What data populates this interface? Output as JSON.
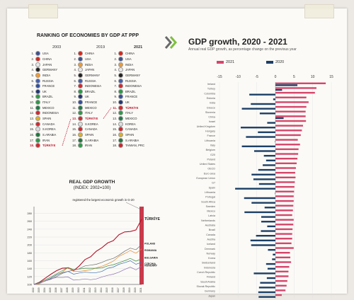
{
  "ranking": {
    "title": "RANKING OF ECONOMIES BY GDP AT PPP",
    "years": [
      "2003",
      "2019",
      "2021"
    ],
    "columns": [
      [
        "USA",
        "CHINA",
        "JAPAN",
        "GERMANY",
        "INDIA",
        "RUSSIA",
        "FRANCE",
        "UK",
        "BRAZIL",
        "ITALY",
        "MEXICO",
        "INDONESIA",
        "SPAIN",
        "CANADA",
        "S.KOREA",
        "S.ARABIA",
        "IRAN",
        "TÜRKİYE"
      ],
      [
        "CHINA",
        "USA",
        "INDIA",
        "JAPAN",
        "GERMANY",
        "RUSSIA",
        "INDONESIA",
        "BRAZIL",
        "UK",
        "FRANCE",
        "MEXICO",
        "ITALY",
        "TÜRKİYE",
        "S.KOREA",
        "CANADA",
        "SPAIN",
        "S.ARABIA",
        "IRAN"
      ],
      [
        "CHINA",
        "USA",
        "INDIA",
        "JAPAN",
        "GERMANY",
        "RUSSIA",
        "INDONESIA",
        "BRAZIL",
        "FRANCE",
        "UK",
        "TÜRKİYE",
        "ITALY",
        "MEXICO",
        "KOREA",
        "CANADA",
        "SPAIN",
        "S.ARABIA",
        "TAIWAN, PRC"
      ]
    ],
    "flag_colors": {
      "USA": "#3c4f8f",
      "CHINA": "#d8261c",
      "JAPAN": "#e8e8e8",
      "GERMANY": "#222222",
      "INDIA": "#f39a2c",
      "RUSSIA": "#3f5fb0",
      "FRANCE": "#2f4fa0",
      "UK": "#1f3578",
      "BRAZIL": "#2a9a45",
      "ITALY": "#2a9a45",
      "MEXICO": "#1d7a45",
      "INDONESIA": "#d6262c",
      "SPAIN": "#e0b020",
      "CANADA": "#d6262c",
      "S.KOREA": "#dddddd",
      "KOREA": "#dddddd",
      "S.ARABIA": "#1b7a3a",
      "IRAN": "#2a9a45",
      "TÜRKİYE": "#d6262c",
      "TAIWAN, PRC": "#c9262c"
    },
    "highlight": "TÜRKİYE"
  },
  "real_gdp": {
    "title": "REAL GDP GROWTH",
    "subtitle": "(INDEX: 2002=100)",
    "annotation": "registered the largest economic growth in G-20",
    "brand": "TÜRKİYE",
    "right_labels": [
      "POLAND",
      "ROMANIA",
      "BULGARIA",
      "CZECHIA",
      "HUNGARY"
    ]
  },
  "growth": {
    "title": "GDP growth, 2020 - 2021",
    "subtitle": "Annual real GDP growth, as percentage change on the previous year"
  },
  "chart_data": [
    {
      "type": "line",
      "title": "REAL GDP GROWTH",
      "subtitle": "(INDEX: 2002=100)",
      "x": [
        2002,
        2003,
        2004,
        2005,
        2006,
        2007,
        2008,
        2009,
        2010,
        2011,
        2012,
        2013,
        2014,
        2015,
        2016,
        2017,
        2018,
        2019,
        2020,
        2021
      ],
      "ylim": [
        100,
        290
      ],
      "yticks": [
        100,
        120,
        140,
        160,
        180,
        200,
        220,
        240,
        260,
        280
      ],
      "series": [
        {
          "name": "TÜRKİYE",
          "color": "#b5162b",
          "values": [
            100,
            106,
            116,
            126,
            135,
            141,
            142,
            135,
            147,
            163,
            170,
            184,
            193,
            205,
            211,
            226,
            233,
            234,
            238,
            265
          ]
        },
        {
          "name": "POLAND",
          "color": "#6b6b6b",
          "values": [
            100,
            104,
            109,
            113,
            120,
            128,
            133,
            136,
            140,
            147,
            149,
            151,
            156,
            162,
            166,
            174,
            184,
            192,
            188,
            201
          ]
        },
        {
          "name": "ROMANIA",
          "color": "#e08a2a",
          "values": [
            100,
            102,
            110,
            115,
            124,
            131,
            143,
            133,
            133,
            135,
            137,
            142,
            146,
            152,
            159,
            171,
            178,
            186,
            179,
            190
          ]
        },
        {
          "name": "BULGARIA",
          "color": "#3a8a3a",
          "values": [
            100,
            105,
            112,
            119,
            127,
            135,
            143,
            138,
            139,
            141,
            141,
            141,
            142,
            147,
            150,
            155,
            160,
            166,
            159,
            165
          ]
        },
        {
          "name": "CZECHIA",
          "color": "#3a6fb0",
          "values": [
            100,
            104,
            109,
            116,
            124,
            130,
            133,
            126,
            129,
            131,
            130,
            130,
            133,
            141,
            144,
            151,
            155,
            160,
            151,
            156
          ]
        },
        {
          "name": "HUNGARY",
          "color": "#8a6fb5",
          "values": [
            100,
            104,
            109,
            114,
            118,
            118,
            119,
            111,
            112,
            114,
            112,
            114,
            119,
            123,
            126,
            131,
            138,
            144,
            137,
            146
          ]
        }
      ]
    },
    {
      "type": "bar",
      "title": "GDP growth, 2020 - 2021",
      "subtitle": "Annual real GDP growth, as percentage change on the previous year",
      "xlim": [
        -15,
        15
      ],
      "xticks": [
        -15,
        -10,
        -5,
        0,
        5,
        10,
        15
      ],
      "categories": [
        "Ireland",
        "Turkey",
        "Colombia",
        "Estonia",
        "India",
        "Greece",
        "Slovenia",
        "China",
        "Israel",
        "United Kingdom",
        "Hungary",
        "France",
        "Lithuania",
        "Italy",
        "Belgium",
        "G20",
        "Poland",
        "United States",
        "OECD",
        "Euro area",
        "European Union",
        "G7",
        "Spain",
        "Lithuania",
        "Portugal",
        "South Africa",
        "Sweden",
        "Mexico",
        "Latvia",
        "Netherlands",
        "Australia",
        "Brazil",
        "Canada",
        "Austria",
        "Iceland",
        "Denmark",
        "Norway",
        "Korea",
        "Switzerland",
        "Indonesia",
        "Czech Republic",
        "Finland",
        "Saudi Arabia",
        "Slovak Republic",
        "Germany",
        "Japan"
      ],
      "series": [
        {
          "name": "2021",
          "color": "#d6456a",
          "values": [
            13.5,
            11.0,
            10.6,
            8.3,
            8.9,
            8.3,
            8.1,
            8.1,
            8.2,
            7.4,
            7.1,
            6.8,
            6.0,
            6.6,
            6.2,
            6.1,
            5.9,
            5.7,
            5.5,
            5.3,
            5.4,
            5.2,
            5.1,
            5.0,
            4.9,
            4.9,
            4.8,
            4.7,
            4.5,
            4.9,
            4.8,
            4.6,
            4.5,
            4.5,
            4.3,
            4.9,
            3.9,
            4.0,
            4.2,
            3.7,
            3.5,
            3.5,
            3.2,
            3.0,
            2.7,
            1.7
          ]
        },
        {
          "name": "2020",
          "color": "#1c3f66",
          "values": [
            5.9,
            1.8,
            -7.0,
            -0.6,
            -6.6,
            -9.0,
            -4.2,
            2.2,
            -2.2,
            -9.3,
            -4.7,
            -7.9,
            -0.1,
            -9.0,
            -5.7,
            -3.1,
            -2.5,
            -3.4,
            -4.6,
            -6.4,
            -5.9,
            -4.4,
            -10.8,
            -0.1,
            -8.4,
            -6.4,
            -2.9,
            -8.3,
            -3.8,
            -3.8,
            -2.2,
            -3.9,
            -5.2,
            -6.7,
            -6.5,
            -2.0,
            -0.7,
            -0.9,
            -2.5,
            -2.1,
            -5.8,
            -2.3,
            -4.1,
            -4.4,
            -4.6,
            -4.5
          ]
        }
      ]
    }
  ]
}
